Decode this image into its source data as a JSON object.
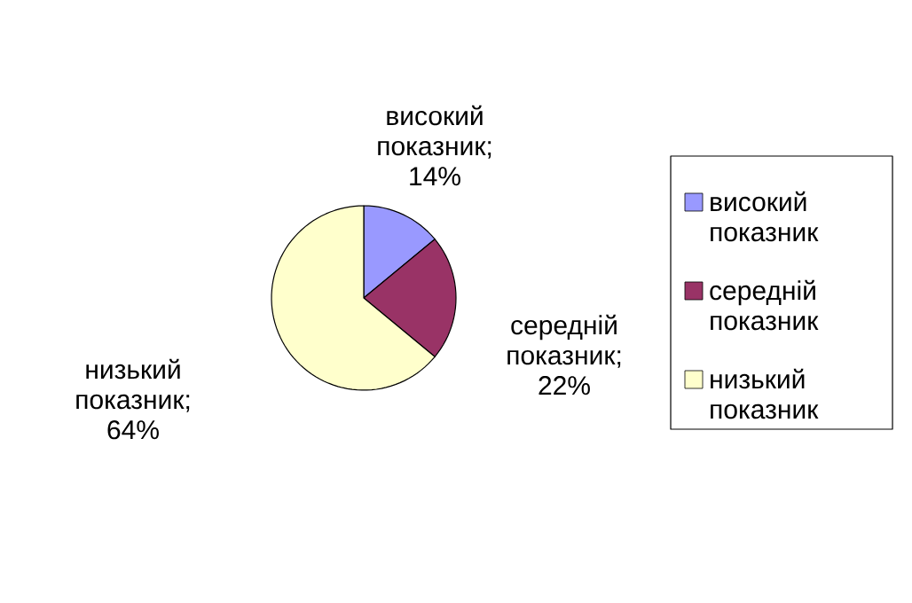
{
  "chart_data": {
    "type": "pie",
    "categories": [
      "високий показник",
      "середній показник",
      "низький показник"
    ],
    "values": [
      14,
      22,
      64
    ],
    "colors": [
      "#9999ff",
      "#993366",
      "#ffffcc"
    ],
    "value_labels": [
      "високий показник; 14%",
      "середній показник; 22%",
      "низький показник; 64%"
    ],
    "legend": "right"
  }
}
